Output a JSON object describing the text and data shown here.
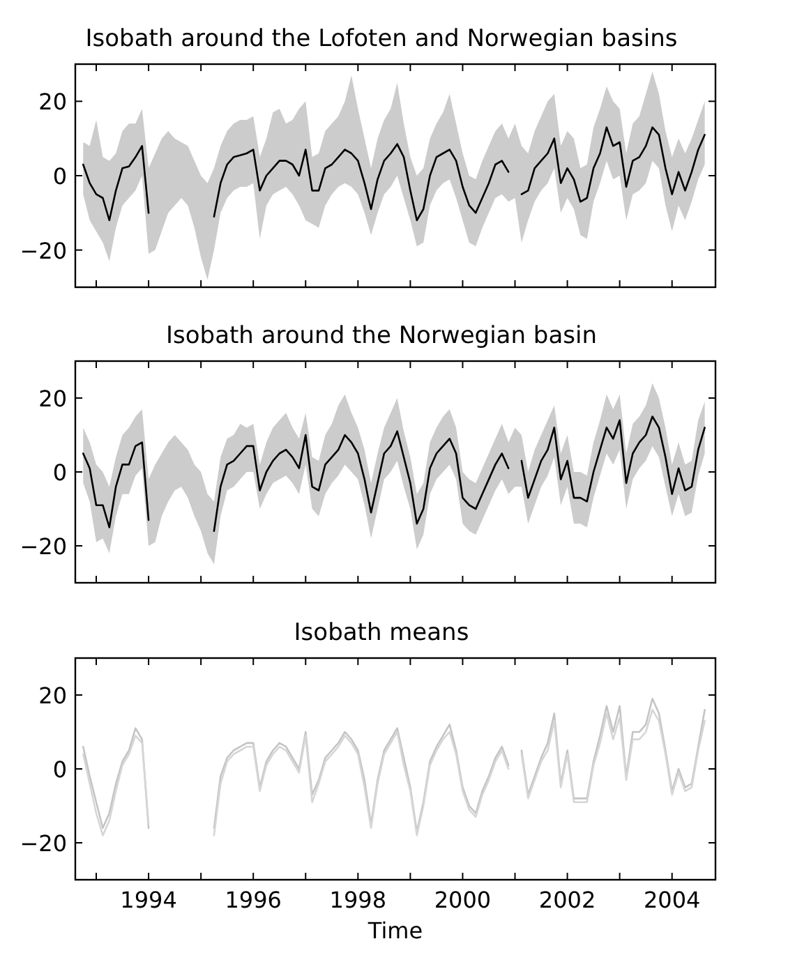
{
  "chart_data": [
    {
      "type": "line",
      "title": "Isobath around the Lofoten and Norwegian basins",
      "tick_labels": "y",
      "x": [
        1992.75,
        1992.875,
        1993,
        1993.125,
        1993.25,
        1993.375,
        1993.5,
        1993.625,
        1993.75,
        1993.875,
        1994,
        1994.125,
        1994.25,
        1994.375,
        1994.5,
        1994.625,
        1994.75,
        1994.875,
        1995,
        1995.125,
        1995.25,
        1995.375,
        1995.5,
        1995.625,
        1995.75,
        1995.875,
        1996,
        1996.125,
        1996.25,
        1996.375,
        1996.5,
        1996.625,
        1996.75,
        1996.875,
        1997,
        1997.125,
        1997.25,
        1997.375,
        1997.5,
        1997.625,
        1997.75,
        1997.875,
        1998,
        1998.125,
        1998.25,
        1998.375,
        1998.5,
        1998.625,
        1998.75,
        1998.875,
        1999,
        1999.125,
        1999.25,
        1999.375,
        1999.5,
        1999.625,
        1999.75,
        1999.875,
        2000,
        2000.125,
        2000.25,
        2000.375,
        2000.5,
        2000.625,
        2000.75,
        2000.875,
        2001,
        2001.125,
        2001.25,
        2001.375,
        2001.5,
        2001.625,
        2001.75,
        2001.875,
        2002,
        2002.125,
        2002.25,
        2002.375,
        2002.5,
        2002.625,
        2002.75,
        2002.875,
        2003,
        2003.125,
        2003.25,
        2003.375,
        2003.5,
        2003.625,
        2003.75,
        2003.875,
        2004,
        2004.125,
        2004.25,
        2004.375,
        2004.5,
        2004.625
      ],
      "xlim": [
        1992.6,
        2004.83
      ],
      "xticks": [
        {
          "value": 1993,
          "label": null
        },
        {
          "value": 1994,
          "label": null
        },
        {
          "value": 1995,
          "label": null
        },
        {
          "value": 1996,
          "label": null
        },
        {
          "value": 1997,
          "label": null
        },
        {
          "value": 1998,
          "label": null
        },
        {
          "value": 1999,
          "label": null
        },
        {
          "value": 2000,
          "label": null
        },
        {
          "value": 2001,
          "label": null
        },
        {
          "value": 2002,
          "label": null
        },
        {
          "value": 2003,
          "label": null
        },
        {
          "value": 2004,
          "label": null
        }
      ],
      "ylim": [
        -30,
        30
      ],
      "yticks": [
        -20,
        0,
        20
      ],
      "series": [
        {
          "color": "#000000",
          "values": [
            3,
            -2,
            -5,
            -6,
            -12,
            -4,
            2,
            2.5,
            5,
            8,
            -10,
            null,
            null,
            null,
            null,
            null,
            null,
            null,
            null,
            null,
            -11,
            -2,
            3,
            5,
            5.5,
            6,
            7,
            -4,
            0,
            2,
            4,
            4,
            3,
            0,
            7,
            -4,
            -4,
            2,
            3,
            5,
            7,
            6,
            4,
            -2,
            -9,
            -1,
            4,
            6,
            8.5,
            5,
            -4,
            -12,
            -9,
            0,
            5,
            6,
            7,
            4,
            -3,
            -8,
            -10,
            -6,
            -2,
            3,
            4,
            1,
            null,
            -5,
            -4,
            2,
            4,
            6,
            10,
            -2,
            2,
            -1,
            -7,
            -6,
            2,
            6,
            13,
            8,
            9,
            -3,
            4,
            5,
            8,
            13,
            11,
            2,
            -5,
            1,
            -4,
            1,
            7,
            11
          ],
          "lower": [
            -5,
            -12,
            -15,
            -18,
            -23,
            -14,
            -8,
            -6,
            -4,
            0,
            -21,
            -20,
            -15,
            -10,
            -8,
            -6,
            -8,
            -14,
            -22,
            -28,
            -20,
            -10,
            -6,
            -4,
            -3,
            -3,
            -2,
            -17,
            -8,
            -5,
            -4,
            -3,
            -5,
            -8,
            -12,
            -13,
            -14,
            -8,
            -5,
            -3,
            -2,
            -3,
            -5,
            -10,
            -16,
            -10,
            -5,
            -3,
            0,
            -6,
            -12,
            -19,
            -18,
            -8,
            -4,
            -2,
            -1,
            -6,
            -12,
            -18,
            -19,
            -14,
            -10,
            -6,
            -5,
            -7,
            -6,
            -18,
            -12,
            -7,
            -4,
            -2,
            2,
            -10,
            -6,
            -9,
            -16,
            -17,
            -7,
            -2,
            4,
            -1,
            0,
            -12,
            -5,
            -4,
            -2,
            4,
            2,
            -8,
            -15,
            -8,
            -12,
            -7,
            -1,
            3
          ],
          "upper": [
            9,
            8,
            15,
            5,
            4,
            6,
            12,
            14,
            14,
            18,
            2,
            6,
            10,
            12,
            10,
            9,
            8,
            4,
            0,
            -2,
            2,
            8,
            12,
            14,
            15,
            15,
            16,
            5,
            10,
            17,
            18,
            14,
            15,
            18,
            20,
            5,
            6,
            12,
            14,
            16,
            20,
            27,
            18,
            10,
            2,
            10,
            15,
            18,
            25,
            14,
            5,
            0,
            2,
            10,
            14,
            17,
            22,
            14,
            6,
            0,
            -1,
            4,
            8,
            12,
            14,
            10,
            14,
            8,
            6,
            12,
            16,
            20,
            22,
            8,
            12,
            10,
            2,
            3,
            13,
            18,
            24,
            20,
            18,
            6,
            14,
            16,
            22,
            28,
            22,
            12,
            5,
            10,
            6,
            10,
            15,
            20
          ]
        }
      ]
    },
    {
      "type": "line",
      "title": "Isobath around the Norwegian basin",
      "tick_labels": "y",
      "x": [
        1992.75,
        1992.875,
        1993,
        1993.125,
        1993.25,
        1993.375,
        1993.5,
        1993.625,
        1993.75,
        1993.875,
        1994,
        1994.125,
        1994.25,
        1994.375,
        1994.5,
        1994.625,
        1994.75,
        1994.875,
        1995,
        1995.125,
        1995.25,
        1995.375,
        1995.5,
        1995.625,
        1995.75,
        1995.875,
        1996,
        1996.125,
        1996.25,
        1996.375,
        1996.5,
        1996.625,
        1996.75,
        1996.875,
        1997,
        1997.125,
        1997.25,
        1997.375,
        1997.5,
        1997.625,
        1997.75,
        1997.875,
        1998,
        1998.125,
        1998.25,
        1998.375,
        1998.5,
        1998.625,
        1998.75,
        1998.875,
        1999,
        1999.125,
        1999.25,
        1999.375,
        1999.5,
        1999.625,
        1999.75,
        1999.875,
        2000,
        2000.125,
        2000.25,
        2000.375,
        2000.5,
        2000.625,
        2000.75,
        2000.875,
        2001,
        2001.125,
        2001.25,
        2001.375,
        2001.5,
        2001.625,
        2001.75,
        2001.875,
        2002,
        2002.125,
        2002.25,
        2002.375,
        2002.5,
        2002.625,
        2002.75,
        2002.875,
        2003,
        2003.125,
        2003.25,
        2003.375,
        2003.5,
        2003.625,
        2003.75,
        2003.875,
        2004,
        2004.125,
        2004.25,
        2004.375,
        2004.5,
        2004.625
      ],
      "xlim": [
        1992.6,
        2004.83
      ],
      "xticks": [
        {
          "value": 1993,
          "label": null
        },
        {
          "value": 1994,
          "label": null
        },
        {
          "value": 1995,
          "label": null
        },
        {
          "value": 1996,
          "label": null
        },
        {
          "value": 1997,
          "label": null
        },
        {
          "value": 1998,
          "label": null
        },
        {
          "value": 1999,
          "label": null
        },
        {
          "value": 2000,
          "label": null
        },
        {
          "value": 2001,
          "label": null
        },
        {
          "value": 2002,
          "label": null
        },
        {
          "value": 2003,
          "label": null
        },
        {
          "value": 2004,
          "label": null
        }
      ],
      "ylim": [
        -30,
        30
      ],
      "yticks": [
        -20,
        0,
        20
      ],
      "series": [
        {
          "color": "#000000",
          "values": [
            5,
            1,
            -9,
            -9,
            -15,
            -4,
            2,
            2,
            7,
            8,
            -13,
            null,
            null,
            null,
            null,
            null,
            null,
            null,
            null,
            null,
            -16,
            -4,
            2,
            3,
            5,
            7,
            7,
            -5,
            0,
            3,
            5,
            6,
            4,
            1,
            10,
            -4,
            -5,
            2,
            4,
            6,
            10,
            8,
            5,
            -2,
            -11,
            -3,
            5,
            7,
            11,
            4,
            -3,
            -14,
            -10,
            1,
            5,
            7,
            9,
            5,
            -7,
            -9,
            -10,
            -6,
            -2,
            2,
            5,
            1,
            null,
            3,
            -7,
            -2,
            3,
            6,
            12,
            -2,
            3,
            -7,
            -7,
            -8,
            0,
            6,
            12,
            9,
            14,
            -3,
            5,
            8,
            10,
            15,
            12,
            4,
            -6,
            1,
            -5,
            -4,
            6,
            12
          ],
          "lower": [
            -3,
            -8,
            -19,
            -18,
            -22,
            -12,
            -6,
            -6,
            -1,
            1,
            -20,
            -19,
            -12,
            -8,
            -5,
            -4,
            -7,
            -12,
            -16,
            -22,
            -25,
            -12,
            -5,
            -4,
            -2,
            0,
            0,
            -10,
            -6,
            -3,
            -2,
            -1,
            -3,
            -6,
            2,
            -10,
            -12,
            -6,
            -3,
            -1,
            2,
            0,
            -2,
            -9,
            -18,
            -10,
            -2,
            0,
            3,
            -4,
            -10,
            -21,
            -17,
            -6,
            -2,
            0,
            2,
            -2,
            -14,
            -16,
            -17,
            -13,
            -9,
            -5,
            -2,
            -6,
            -4,
            -4,
            -14,
            -9,
            -4,
            -1,
            4,
            -9,
            -4,
            -14,
            -14,
            -15,
            -7,
            -1,
            5,
            2,
            6,
            -10,
            -2,
            1,
            3,
            7,
            4,
            -4,
            -12,
            -6,
            -12,
            -11,
            -1,
            5
          ],
          "upper": [
            12,
            8,
            2,
            0,
            -4,
            4,
            10,
            12,
            15,
            17,
            -2,
            2,
            5,
            8,
            10,
            8,
            6,
            2,
            0,
            -6,
            -8,
            4,
            9,
            10,
            13,
            12,
            13,
            2,
            8,
            12,
            14,
            16,
            12,
            9,
            16,
            4,
            3,
            10,
            13,
            18,
            21,
            16,
            12,
            6,
            -3,
            5,
            12,
            16,
            20,
            11,
            4,
            -6,
            -3,
            8,
            12,
            15,
            17,
            12,
            0,
            -2,
            -3,
            1,
            5,
            9,
            13,
            8,
            12,
            10,
            0,
            6,
            10,
            14,
            18,
            5,
            10,
            0,
            0,
            -1,
            8,
            14,
            21,
            17,
            21,
            5,
            13,
            15,
            18,
            24,
            20,
            12,
            2,
            8,
            2,
            3,
            14,
            19
          ]
        }
      ]
    },
    {
      "type": "line",
      "title": "Isobath means",
      "xlabel": "Time",
      "x": [
        1992.75,
        1992.875,
        1993,
        1993.125,
        1993.25,
        1993.375,
        1993.5,
        1993.625,
        1993.75,
        1993.875,
        1994,
        1994.125,
        1994.25,
        1994.375,
        1994.5,
        1994.625,
        1994.75,
        1994.875,
        1995,
        1995.125,
        1995.25,
        1995.375,
        1995.5,
        1995.625,
        1995.75,
        1995.875,
        1996,
        1996.125,
        1996.25,
        1996.375,
        1996.5,
        1996.625,
        1996.75,
        1996.875,
        1997,
        1997.125,
        1997.25,
        1997.375,
        1997.5,
        1997.625,
        1997.75,
        1997.875,
        1998,
        1998.125,
        1998.25,
        1998.375,
        1998.5,
        1998.625,
        1998.75,
        1998.875,
        1999,
        1999.125,
        1999.25,
        1999.375,
        1999.5,
        1999.625,
        1999.75,
        1999.875,
        2000,
        2000.125,
        2000.25,
        2000.375,
        2000.5,
        2000.625,
        2000.75,
        2000.875,
        2001,
        2001.125,
        2001.25,
        2001.375,
        2001.5,
        2001.625,
        2001.75,
        2001.875,
        2002,
        2002.125,
        2002.25,
        2002.375,
        2002.5,
        2002.625,
        2002.75,
        2002.875,
        2003,
        2003.125,
        2003.25,
        2003.375,
        2003.5,
        2003.625,
        2003.75,
        2003.875,
        2004,
        2004.125,
        2004.25,
        2004.375,
        2004.5,
        2004.625
      ],
      "xlim": [
        1992.6,
        2004.83
      ],
      "xticks": [
        {
          "value": 1993,
          "label": null
        },
        {
          "value": 1994,
          "label": "1994"
        },
        {
          "value": 1995,
          "label": null
        },
        {
          "value": 1996,
          "label": "1996"
        },
        {
          "value": 1997,
          "label": null
        },
        {
          "value": 1998,
          "label": "1998"
        },
        {
          "value": 1999,
          "label": null
        },
        {
          "value": 2000,
          "label": "2000"
        },
        {
          "value": 2001,
          "label": null
        },
        {
          "value": 2002,
          "label": "2002"
        },
        {
          "value": 2003,
          "label": null
        },
        {
          "value": 2004,
          "label": "2004"
        }
      ],
      "ylim": [
        -30,
        30
      ],
      "yticks": [
        -20,
        0,
        20
      ],
      "series": [
        {
          "color": "#c4c4c4",
          "values": [
            6,
            -2,
            -9,
            -16,
            -12,
            -4,
            2,
            5,
            11,
            8,
            -16,
            null,
            null,
            null,
            null,
            null,
            null,
            null,
            null,
            null,
            -16,
            -2,
            3,
            5,
            6,
            7,
            7,
            -5,
            2,
            5,
            7,
            6,
            3,
            0,
            10,
            -7,
            -3,
            3,
            5,
            7,
            10,
            8,
            5,
            -3,
            -15,
            -3,
            5,
            8,
            11,
            3,
            -5,
            -17,
            -9,
            2,
            6,
            9,
            12,
            5,
            -5,
            -10,
            -12,
            -6,
            -2,
            3,
            6,
            1,
            null,
            5,
            -7,
            -2,
            3,
            7,
            15,
            -4,
            5,
            -8,
            -8,
            -8,
            2,
            9,
            17,
            10,
            17,
            -2,
            10,
            10,
            12,
            19,
            15,
            5,
            -6,
            0,
            -5,
            -4,
            6,
            16
          ]
        },
        {
          "color": "#d6d6d6",
          "values": [
            4,
            -4,
            -12,
            -18,
            -14,
            -6,
            1,
            4,
            9,
            7,
            -15,
            null,
            null,
            null,
            null,
            null,
            null,
            null,
            null,
            null,
            -18,
            -4,
            2,
            4,
            5,
            6,
            6,
            -6,
            1,
            4,
            6,
            5,
            2,
            -1,
            9,
            -9,
            -4,
            2,
            4,
            6,
            9,
            7,
            4,
            -5,
            -16,
            -4,
            4,
            7,
            10,
            1,
            -6,
            -18,
            -10,
            1,
            5,
            8,
            10,
            4,
            -6,
            -11,
            -13,
            -7,
            -3,
            2,
            5,
            0,
            null,
            4,
            -8,
            -3,
            2,
            5,
            13,
            -5,
            4,
            -9,
            -9,
            -9,
            1,
            7,
            15,
            8,
            14,
            -3,
            8,
            8,
            10,
            16,
            13,
            4,
            -7,
            -1,
            -6,
            -5,
            5,
            13
          ]
        }
      ]
    }
  ]
}
